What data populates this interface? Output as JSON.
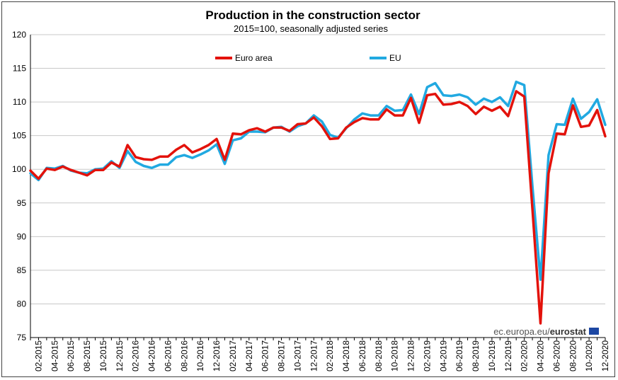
{
  "chart_data": {
    "type": "line",
    "title": "Production in the construction sector",
    "subtitle": "2015=100, seasonally adjusted series",
    "xlabel": "",
    "ylabel": "",
    "ylim": [
      75,
      120
    ],
    "yticks": [
      75,
      80,
      85,
      90,
      95,
      100,
      105,
      110,
      115,
      120
    ],
    "grid": true,
    "legend_position": "top",
    "x": [
      "01-2015",
      "02-2015",
      "03-2015",
      "04-2015",
      "05-2015",
      "06-2015",
      "07-2015",
      "08-2015",
      "09-2015",
      "10-2015",
      "11-2015",
      "12-2015",
      "01-2016",
      "02-2016",
      "03-2016",
      "04-2016",
      "05-2016",
      "06-2016",
      "07-2016",
      "08-2016",
      "09-2016",
      "10-2016",
      "11-2016",
      "12-2016",
      "01-2017",
      "02-2017",
      "03-2017",
      "04-2017",
      "05-2017",
      "06-2017",
      "07-2017",
      "08-2017",
      "09-2017",
      "10-2017",
      "11-2017",
      "12-2017",
      "01-2018",
      "02-2018",
      "03-2018",
      "04-2018",
      "05-2018",
      "06-2018",
      "07-2018",
      "08-2018",
      "09-2018",
      "10-2018",
      "11-2018",
      "12-2018",
      "01-2019",
      "02-2019",
      "03-2019",
      "04-2019",
      "05-2019",
      "06-2019",
      "07-2019",
      "08-2019",
      "09-2019",
      "10-2019",
      "11-2019",
      "12-2019",
      "01-2020",
      "02-2020",
      "03-2020",
      "04-2020",
      "05-2020",
      "06-2020",
      "07-2020",
      "08-2020",
      "09-2020",
      "10-2020",
      "11-2020",
      "12-2020"
    ],
    "xtick_labels": [
      "02-2015",
      "04-2015",
      "06-2015",
      "08-2015",
      "10-2015",
      "12-2015",
      "02-2016",
      "04-2016",
      "06-2016",
      "08-2016",
      "10-2016",
      "12-2016",
      "02-2017",
      "04-2017",
      "06-2017",
      "08-2017",
      "10-2017",
      "12-2017",
      "02-2018",
      "04-2018",
      "06-2018",
      "08-2018",
      "10-2018",
      "12-2018",
      "02-2019",
      "04-2019",
      "06-2019",
      "08-2019",
      "10-2019",
      "12-2019",
      "02-2020",
      "04-2020",
      "06-2020",
      "08-2020",
      "10-2020",
      "12-2020"
    ],
    "series": [
      {
        "name": "Euro area",
        "color": "#e3120b",
        "values": [
          99.8,
          98.6,
          100.1,
          99.9,
          100.4,
          99.9,
          99.5,
          99.1,
          99.9,
          99.9,
          101.0,
          100.4,
          103.6,
          101.8,
          101.5,
          101.4,
          101.9,
          101.9,
          102.9,
          103.6,
          102.5,
          103.0,
          103.6,
          104.5,
          101.4,
          105.3,
          105.2,
          105.8,
          106.1,
          105.6,
          106.2,
          106.2,
          105.7,
          106.7,
          106.8,
          107.7,
          106.4,
          104.5,
          104.6,
          106.2,
          107.0,
          107.6,
          107.4,
          107.4,
          108.9,
          108.0,
          108.0,
          110.6,
          106.9,
          111.0,
          111.2,
          109.6,
          109.7,
          110.0,
          109.4,
          108.2,
          109.3,
          108.7,
          109.3,
          107.9,
          111.6,
          110.8,
          94.1,
          77.1,
          99.4,
          105.3,
          105.2,
          109.5,
          106.3,
          106.5,
          108.8,
          104.9
        ]
      },
      {
        "name": "EU",
        "color": "#21a9e1",
        "values": [
          99.4,
          98.4,
          100.2,
          100.1,
          100.5,
          99.8,
          99.5,
          99.4,
          100.0,
          100.1,
          101.2,
          100.2,
          102.7,
          101.1,
          100.5,
          100.2,
          100.7,
          100.7,
          101.8,
          102.1,
          101.7,
          102.2,
          102.8,
          103.7,
          100.8,
          104.3,
          104.6,
          105.6,
          105.6,
          105.5,
          106.2,
          106.3,
          105.6,
          106.4,
          106.8,
          108.0,
          107.1,
          105.1,
          104.7,
          106.1,
          107.4,
          108.3,
          108.0,
          108.0,
          109.4,
          108.7,
          108.8,
          111.1,
          108.2,
          112.2,
          112.8,
          111.0,
          110.9,
          111.1,
          110.7,
          109.6,
          110.5,
          110.0,
          110.7,
          109.4,
          113.0,
          112.5,
          97.5,
          83.6,
          102.1,
          106.7,
          106.6,
          110.5,
          107.5,
          108.5,
          110.4,
          106.6
        ]
      }
    ]
  },
  "source": {
    "prefix": "ec.europa.eu/",
    "brand": "eurostat",
    "flag_color": "#1c47a3"
  }
}
